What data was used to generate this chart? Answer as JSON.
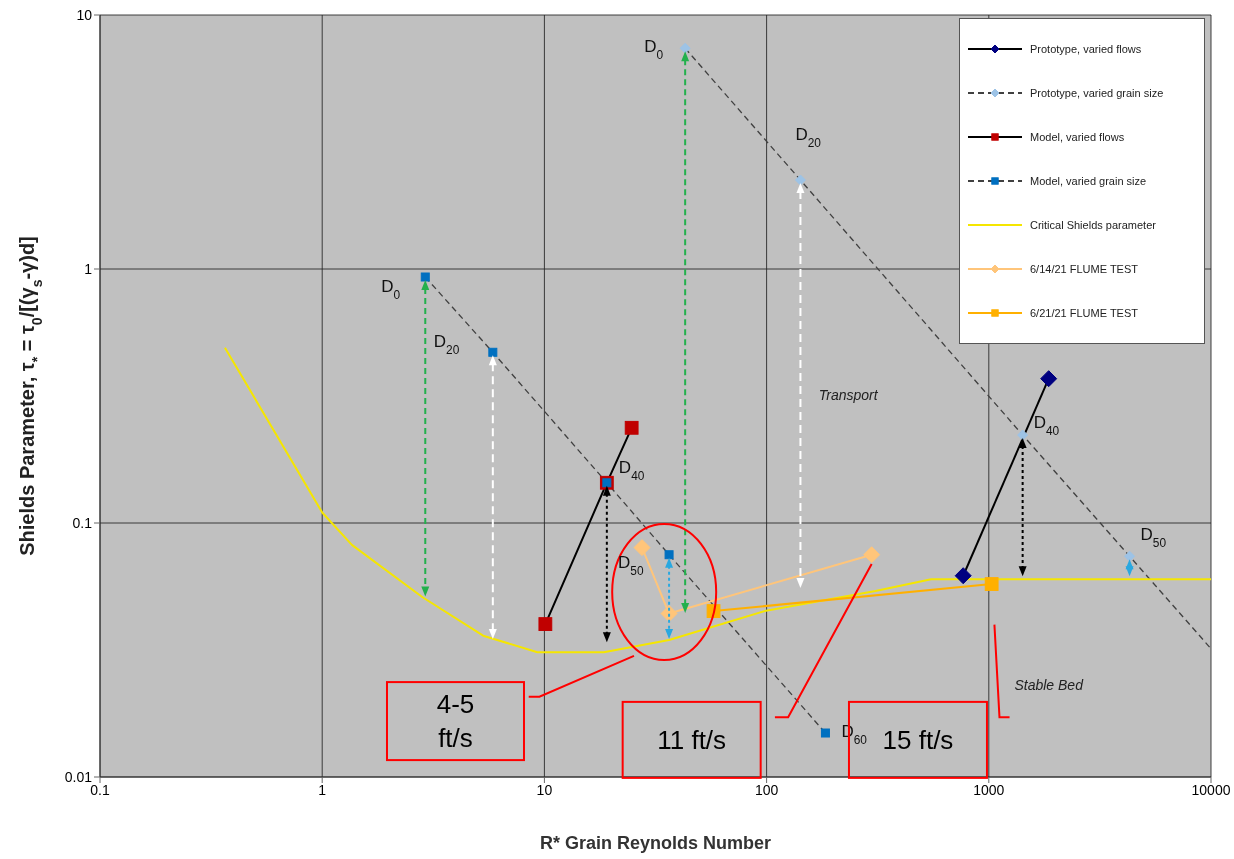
{
  "chart_data": {
    "type": "line",
    "xlabel": "R* Grain Reynolds Number",
    "ylabel": "Shields Parameter, τ$_{*}$ = τ$_{0}$/[(γ$_{s}$-γ)d]",
    "log": "xy",
    "xlim": [
      0.1,
      10000
    ],
    "xticks": [
      0.1,
      1,
      10,
      100,
      1000,
      10000
    ],
    "ylim": [
      0.01,
      10
    ],
    "yticks": [
      0.01,
      0.1,
      1,
      10
    ],
    "grid": true,
    "legend": "top right",
    "series": [
      {
        "name": "Prototype, varied flows",
        "color": "#000000",
        "colors": [
          "#000080",
          "#000080"
        ],
        "marker": "diamond",
        "line_style": "solid",
        "x": [
          767,
          1860
        ],
        "values": [
          0.062,
          0.37
        ]
      },
      {
        "name": "Prototype, varied grain size",
        "color": "#404040",
        "colors": [
          "#9dc3e6",
          "#9dc3e6",
          "#9dc3e6",
          "#9dc3e6",
          null
        ],
        "marker": "diamond",
        "line_style": "dashed",
        "x": [
          43,
          142,
          1420,
          4300,
          10000
        ],
        "values": [
          7.4,
          2.24,
          0.222,
          0.074,
          0.032
        ]
      },
      {
        "name": "Model, varied flows",
        "color": "#000000",
        "colors": [
          "#c00000",
          "#c00000",
          "#c00000"
        ],
        "marker": "square",
        "line_style": "solid",
        "x": [
          10.1,
          19.1,
          24.7
        ],
        "values": [
          0.04,
          0.144,
          0.237
        ]
      },
      {
        "name": "Model, varied grain size",
        "color": "#404040",
        "colors": [
          "#0070c0",
          "#0070c0",
          "#0070c0",
          "#0070c0",
          "#0070c0"
        ],
        "marker": "square",
        "line_style": "dashed",
        "x": [
          2.91,
          5.86,
          19.1,
          36.4,
          184
        ],
        "values": [
          0.93,
          0.47,
          0.144,
          0.075,
          0.0149
        ]
      },
      {
        "name": "Critical Shields parameter",
        "color": "#f5e600",
        "marker": "none",
        "line_style": "solid",
        "x": [
          0.365,
          1,
          1.36,
          2.83,
          5.3,
          9.3,
          18.5,
          36.4,
          98,
          309,
          550,
          1200,
          10000
        ],
        "values": [
          0.49,
          0.11,
          0.082,
          0.051,
          0.036,
          0.031,
          0.031,
          0.0346,
          0.045,
          0.054,
          0.06,
          0.06,
          0.06
        ]
      },
      {
        "name": "6/14/21 FLUME TEST",
        "color": "#ffc57a",
        "colors": [
          "#ffc57a",
          "#ffc57a",
          "#ffc57a"
        ],
        "marker": "diamond",
        "line_style": "solid",
        "x": [
          27.5,
          36.4,
          297
        ],
        "values": [
          0.08,
          0.044,
          0.075
        ]
      },
      {
        "name": "6/21/21 FLUME TEST",
        "color": "#ffb000",
        "colors": [
          "#ffb000",
          "#ffb000"
        ],
        "marker": "square",
        "line_style": "solid",
        "x": [
          57.7,
          1030
        ],
        "values": [
          0.045,
          0.0575
        ]
      }
    ],
    "annotations": [
      {
        "text": "D$_{0}$",
        "x": 2.91,
        "y": 0.93
      },
      {
        "text": "D$_{20}$",
        "x": 5.86,
        "y": 0.47
      },
      {
        "text": "D$_{40}$",
        "x": 19.1,
        "y": 0.144
      },
      {
        "text": "D$_{50}$",
        "x": 36.4,
        "y": 0.075
      },
      {
        "text": "D$_{60}$",
        "x": 184,
        "y": 0.0149
      },
      {
        "text": "D$_{0}$",
        "x": 43,
        "y": 7.4
      },
      {
        "text": "D$_{20}$",
        "x": 142,
        "y": 2.24
      },
      {
        "text": "D$_{40}$",
        "x": 1420,
        "y": 0.222
      },
      {
        "text": "D$_{50}$",
        "x": 4300,
        "y": 0.074
      },
      "Transport",
      "Stable Bed",
      "4-5 ft/s",
      "11 ft/s",
      "15 ft/s"
    ]
  }
}
